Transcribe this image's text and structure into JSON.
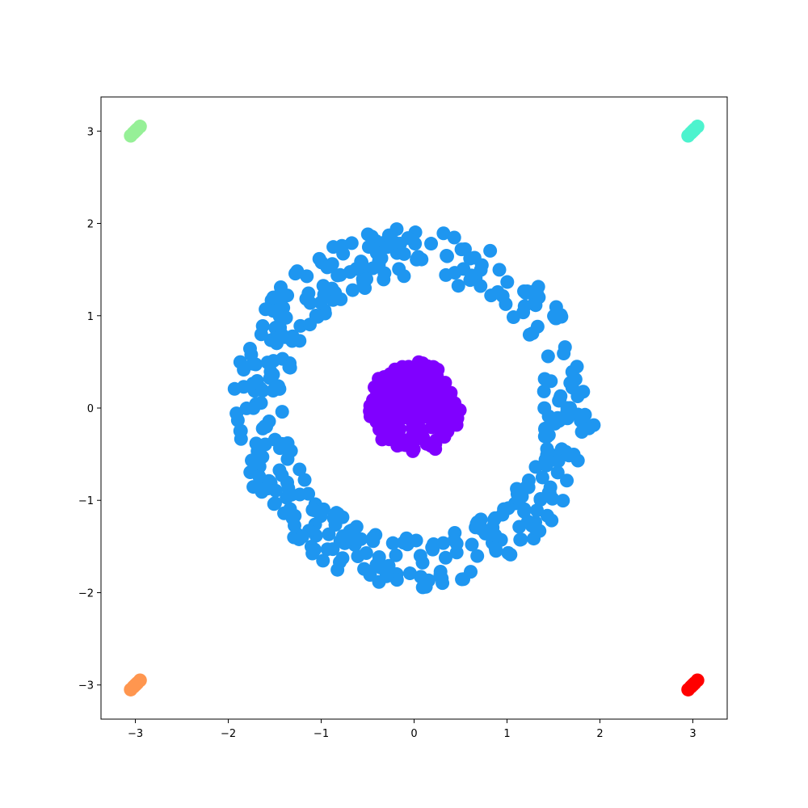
{
  "chart_data": {
    "type": "scatter",
    "title": "",
    "xlabel": "",
    "ylabel": "",
    "xlim": [
      -3.37,
      3.37
    ],
    "ylim": [
      -3.37,
      3.37
    ],
    "grid": false,
    "legend": "none",
    "x_ticks": [
      -3,
      -2,
      -1,
      0,
      1,
      2,
      3
    ],
    "y_ticks": [
      -3,
      -2,
      -1,
      0,
      1,
      2,
      3
    ],
    "x_tick_labels": [
      "−3",
      "−2",
      "−1",
      "0",
      "1",
      "2",
      "3"
    ],
    "y_tick_labels": [
      "−3",
      "−2",
      "−1",
      "0",
      "1",
      "2",
      "3"
    ],
    "series": [
      {
        "color": "#1e96f0",
        "shape": "ring",
        "r_min": 1.4,
        "r_max": 1.95,
        "count": 420,
        "points": []
      },
      {
        "color": "#8000ff",
        "shape": "disk",
        "r_max": 0.5,
        "count": 200,
        "points": []
      },
      {
        "color": "#96f097",
        "shape": "segment",
        "points": [
          [
            -3.05,
            2.95
          ],
          [
            -3.02,
            2.98
          ],
          [
            -3.0,
            3.0
          ],
          [
            -2.98,
            3.02
          ],
          [
            -2.95,
            3.05
          ]
        ]
      },
      {
        "color": "#4df3ce",
        "shape": "segment",
        "points": [
          [
            2.95,
            2.95
          ],
          [
            2.98,
            2.98
          ],
          [
            3.0,
            3.0
          ],
          [
            3.02,
            3.02
          ],
          [
            3.05,
            3.05
          ]
        ]
      },
      {
        "color": "#ff964f",
        "shape": "segment",
        "points": [
          [
            -3.05,
            -3.05
          ],
          [
            -3.02,
            -3.02
          ],
          [
            -3.0,
            -3.0
          ],
          [
            -2.98,
            -2.98
          ],
          [
            -2.95,
            -2.95
          ]
        ]
      },
      {
        "color": "#ff0000",
        "shape": "segment",
        "points": [
          [
            2.95,
            -3.05
          ],
          [
            2.98,
            -3.02
          ],
          [
            3.0,
            -3.0
          ],
          [
            3.02,
            -2.98
          ],
          [
            3.05,
            -2.95
          ]
        ]
      }
    ]
  }
}
